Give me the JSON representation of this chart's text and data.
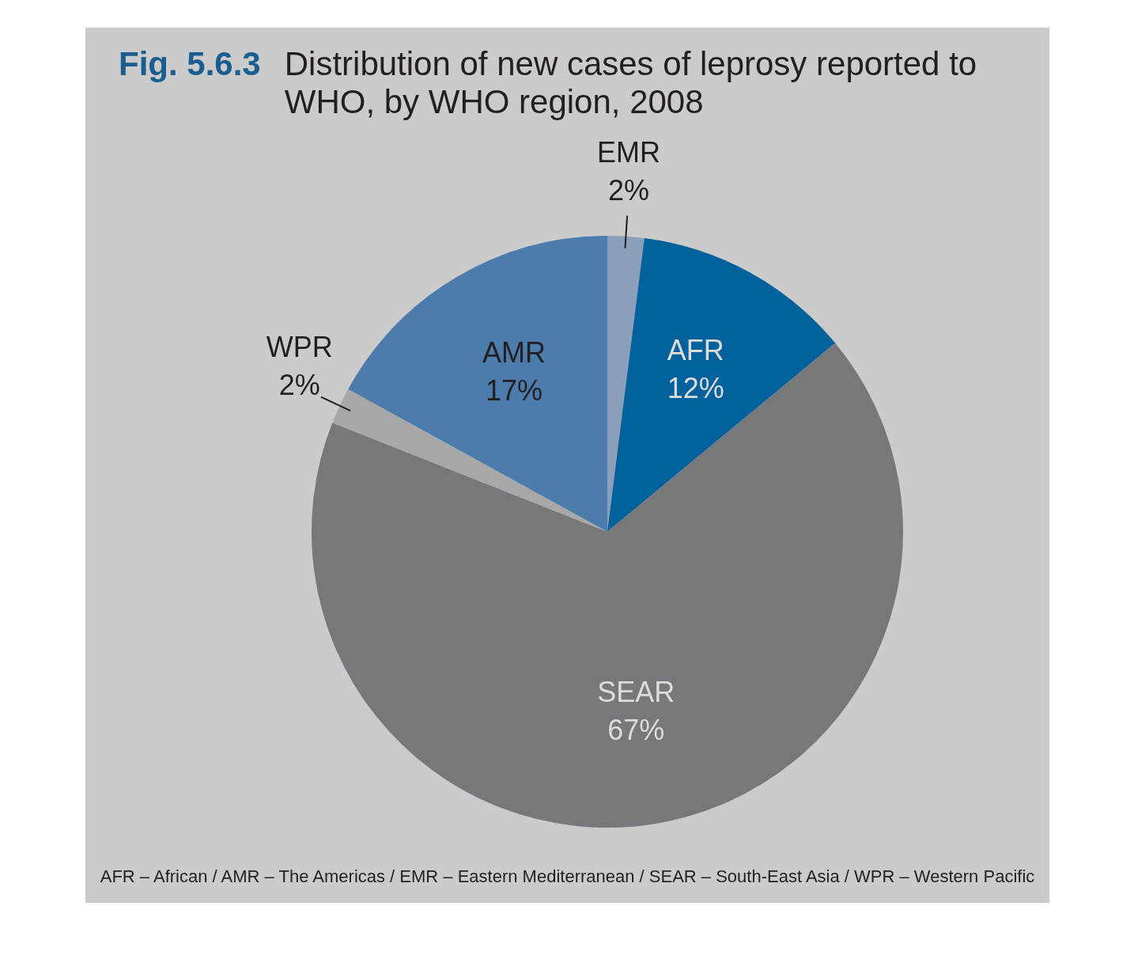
{
  "chart_data": {
    "type": "pie",
    "title": "Fig. 5.6.3",
    "subtitle": "Distribution of new cases of leprosy reported to WHO, by WHO region, 2008",
    "categories": [
      "EMR",
      "AFR",
      "SEAR",
      "WPR",
      "AMR"
    ],
    "values": [
      2,
      12,
      67,
      2,
      17
    ],
    "colors": [
      "#8aa0ba",
      "#00619c",
      "#77787b",
      "#a8a8a9",
      "#4b7cab"
    ],
    "value_labels": [
      "2%",
      "12%",
      "67%",
      "2%",
      "17%"
    ],
    "legend": false,
    "annotations": [
      "AFR – African / AMR – The Americas / EMR – Eastern Mediterranean / SEAR – South-East Asia / WPR – Western Pacific"
    ]
  }
}
